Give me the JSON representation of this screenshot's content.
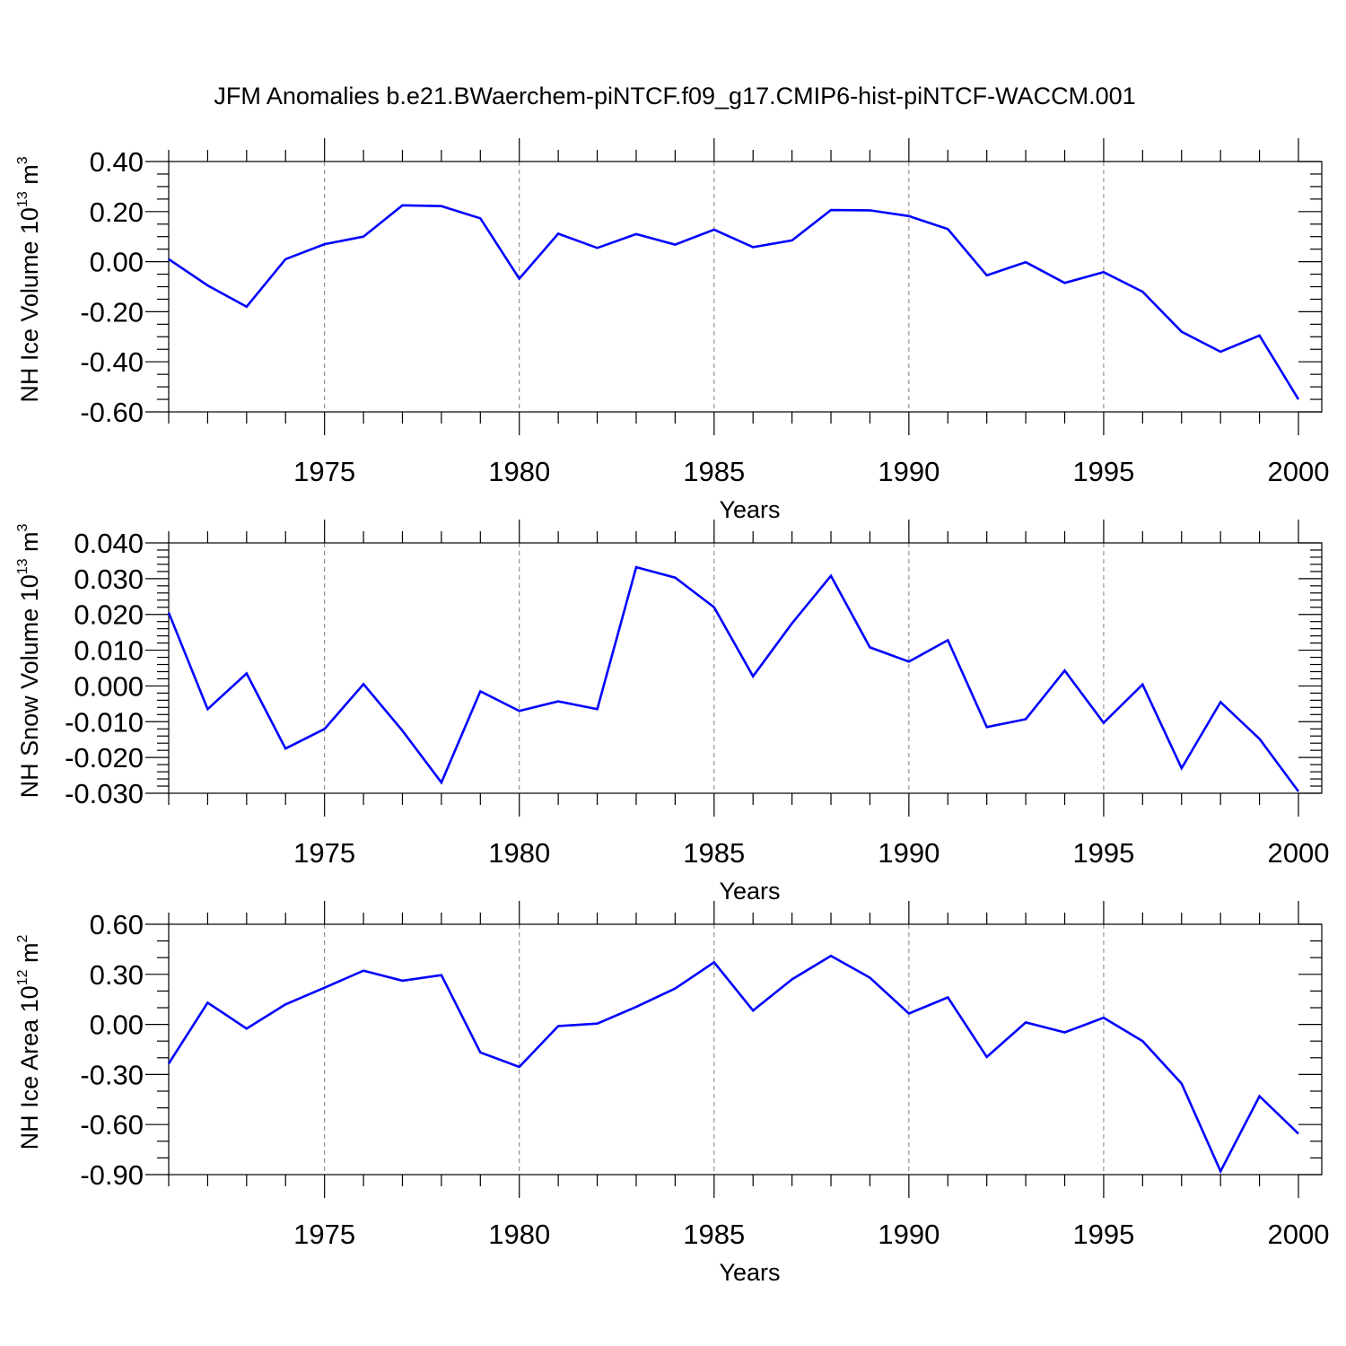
{
  "title": "JFM Anomalies b.e21.BWaerchem-piNTCF.f09_g17.CMIP6-hist-piNTCF-WACCM.001",
  "colors": {
    "line": "#0000ff",
    "axis": "#000000",
    "grid": "#7f7f7f"
  },
  "chart_data": [
    {
      "type": "line",
      "name": "ice-volume",
      "xlabel": "Years",
      "ylabel": {
        "text": "NH Ice Volume 10",
        "exp": "13",
        "unit": " m",
        "unit_exp": "3"
      },
      "xlim": [
        1971,
        2000
      ],
      "ylim": [
        -0.6,
        0.4
      ],
      "xticks": [
        1975,
        1980,
        1985,
        1990,
        1995,
        2000
      ],
      "yticks": [
        "0.40",
        "0.20",
        "0.00",
        "-0.20",
        "-0.40",
        "-0.60"
      ],
      "ytick_values": [
        0.4,
        0.2,
        0.0,
        -0.2,
        -0.4,
        -0.6
      ],
      "yminor_step": 0.05,
      "grid": "vertical dashed at major x ticks",
      "x": [
        1971,
        1972,
        1973,
        1974,
        1975,
        1976,
        1977,
        1978,
        1979,
        1980,
        1981,
        1982,
        1983,
        1984,
        1985,
        1986,
        1987,
        1988,
        1989,
        1990,
        1991,
        1992,
        1993,
        1994,
        1995,
        1996,
        1997,
        1998,
        1999,
        2000
      ],
      "values": [
        0.01,
        -0.095,
        -0.18,
        0.01,
        0.07,
        0.1,
        0.225,
        0.222,
        0.173,
        -0.068,
        0.112,
        0.055,
        0.11,
        0.068,
        0.128,
        0.058,
        0.085,
        0.206,
        0.205,
        0.182,
        0.13,
        -0.055,
        -0.002,
        -0.085,
        -0.042,
        -0.12,
        -0.28,
        -0.36,
        -0.295,
        -0.55
      ]
    },
    {
      "type": "line",
      "name": "snow-volume",
      "xlabel": "Years",
      "ylabel": {
        "text": "NH Snow Volume 10",
        "exp": "13",
        "unit": " m",
        "unit_exp": "3"
      },
      "xlim": [
        1971,
        2000
      ],
      "ylim": [
        -0.03,
        0.04
      ],
      "xticks": [
        1975,
        1980,
        1985,
        1990,
        1995,
        2000
      ],
      "yticks": [
        "0.040",
        "0.030",
        "0.020",
        "0.010",
        "0.000",
        "-0.010",
        "-0.020",
        "-0.030"
      ],
      "ytick_values": [
        0.04,
        0.03,
        0.02,
        0.01,
        0.0,
        -0.01,
        -0.02,
        -0.03
      ],
      "yminor_step": 0.002,
      "grid": "vertical dashed at major x ticks",
      "x": [
        1971,
        1972,
        1973,
        1974,
        1975,
        1976,
        1977,
        1978,
        1979,
        1980,
        1981,
        1982,
        1983,
        1984,
        1985,
        1986,
        1987,
        1988,
        1989,
        1990,
        1991,
        1992,
        1993,
        1994,
        1995,
        1996,
        1997,
        1998,
        1999,
        2000
      ],
      "values": [
        0.0205,
        -0.0065,
        0.0035,
        -0.0175,
        -0.012,
        0.0005,
        -0.0125,
        -0.027,
        -0.0015,
        -0.007,
        -0.0043,
        -0.0065,
        0.0332,
        0.0303,
        0.022,
        0.0027,
        0.0175,
        0.0308,
        0.0108,
        0.0068,
        0.0128,
        -0.0115,
        -0.0093,
        0.0043,
        -0.0103,
        0.0004,
        -0.023,
        -0.0045,
        -0.0148,
        -0.0295
      ]
    },
    {
      "type": "line",
      "name": "ice-area",
      "xlabel": "Years",
      "ylabel": {
        "text": "NH Ice Area 10",
        "exp": "12",
        "unit": " m",
        "unit_exp": "2"
      },
      "xlim": [
        1971,
        2000
      ],
      "ylim": [
        -0.9,
        0.6
      ],
      "xticks": [
        1975,
        1980,
        1985,
        1990,
        1995,
        2000
      ],
      "yticks": [
        "0.60",
        "0.30",
        "0.00",
        "-0.30",
        "-0.60",
        "-0.90"
      ],
      "ytick_values": [
        0.6,
        0.3,
        0.0,
        -0.3,
        -0.6,
        -0.9
      ],
      "yminor_step": 0.1,
      "grid": "vertical dashed at major x ticks",
      "x": [
        1971,
        1972,
        1973,
        1974,
        1975,
        1976,
        1977,
        1978,
        1979,
        1980,
        1981,
        1982,
        1983,
        1984,
        1985,
        1986,
        1987,
        1988,
        1989,
        1990,
        1991,
        1992,
        1993,
        1994,
        1995,
        1996,
        1997,
        1998,
        1999,
        2000
      ],
      "values": [
        -0.235,
        0.13,
        -0.025,
        0.12,
        0.22,
        0.322,
        0.262,
        0.295,
        -0.168,
        -0.255,
        -0.01,
        0.005,
        0.105,
        0.215,
        0.372,
        0.083,
        0.27,
        0.41,
        0.28,
        0.065,
        0.162,
        -0.195,
        0.012,
        -0.048,
        0.04,
        -0.1,
        -0.355,
        -0.88,
        -0.43,
        -0.655
      ]
    }
  ]
}
